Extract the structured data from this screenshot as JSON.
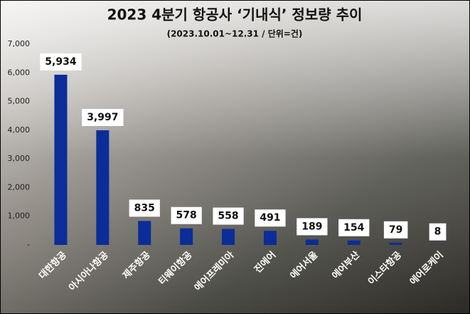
{
  "chart_data": {
    "type": "bar",
    "title": "2023 4분기 항공사 ‘기내식’ 정보량 추이",
    "subtitle": "(2023.10.01~12.31 / 단위=건)",
    "categories": [
      "대한항공",
      "아시아나항공",
      "제주항공",
      "티웨이항공",
      "에어프레미아",
      "진에어",
      "에어서울",
      "에어부산",
      "이스타항공",
      "에어로케이"
    ],
    "values": [
      5934,
      3997,
      835,
      578,
      558,
      491,
      189,
      154,
      79,
      8
    ],
    "value_labels": [
      "5,934",
      "3,997",
      "835",
      "578",
      "558",
      "491",
      "189",
      "154",
      "79",
      "8"
    ],
    "color": "#0b2d97",
    "ylim": [
      0,
      7000
    ],
    "yticks": [
      {
        "value": 0,
        "label": "-"
      },
      {
        "value": 1000,
        "label": "1,000"
      },
      {
        "value": 2000,
        "label": "2,000"
      },
      {
        "value": 3000,
        "label": "3,000"
      },
      {
        "value": 4000,
        "label": "4,000"
      },
      {
        "value": 5000,
        "label": "5,000"
      },
      {
        "value": 6000,
        "label": "6,000"
      },
      {
        "value": 7000,
        "label": "7,000"
      }
    ],
    "grid": false
  }
}
